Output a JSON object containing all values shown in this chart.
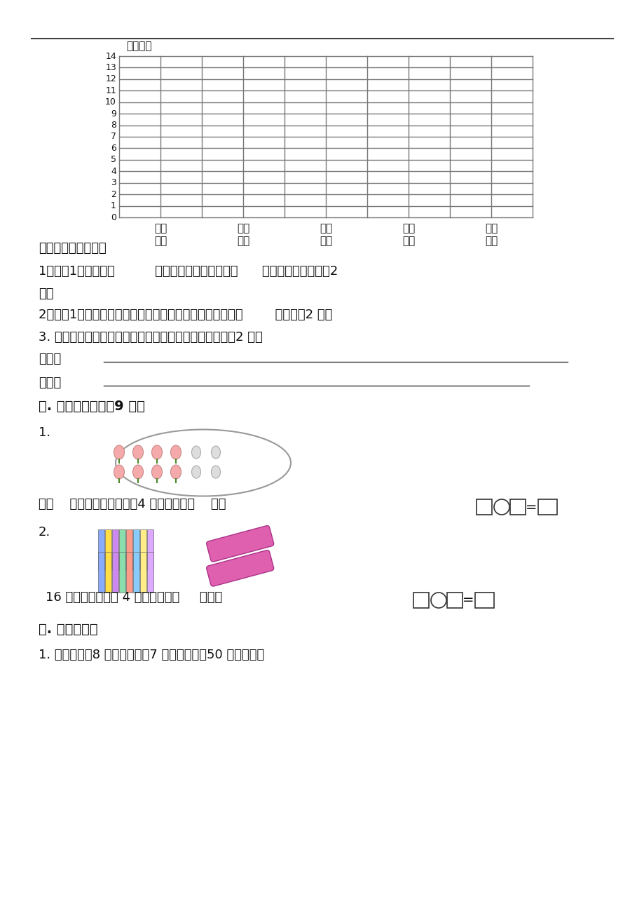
{
  "bg_color": "#ffffff",
  "unit_label": "单位：人",
  "grid_categories": [
    "舞蹈\n小组",
    "美术\n小组",
    "微机\n小组",
    "武术\n小组",
    "书法\n小组"
  ],
  "text_cong": "从统计图可以看出：",
  "text_q1a": "1．二（1）班参加（          ）小组的人最多，参加（      ）小组的人最少。（2",
  "text_q1b": "分）",
  "text_q2": "2．二（1）班参加美术小组的人数是参加武术小组人数的（        ）倍。（2 分）",
  "text_q3": "3. 根据上面的数据，自己提出一个数学问题，并解答。（2 分）",
  "text_wenti": "问题：",
  "text_jieda": "解答：",
  "text_sec5": "五. 看图做一做。（9 分）",
  "text_peach": "把（    ）个桃子，平均分成4 盘，每盘有（    ）个",
  "text_pencil": "16 枝铅笔，每盒放 4 枝，可以装（     ）盒。",
  "text_sec7": "七. 解决问题。",
  "text_prob1": "1. 每个汉堡刅8 元，明明要买7 个汉堡包，帤50 元錢够吗？"
}
